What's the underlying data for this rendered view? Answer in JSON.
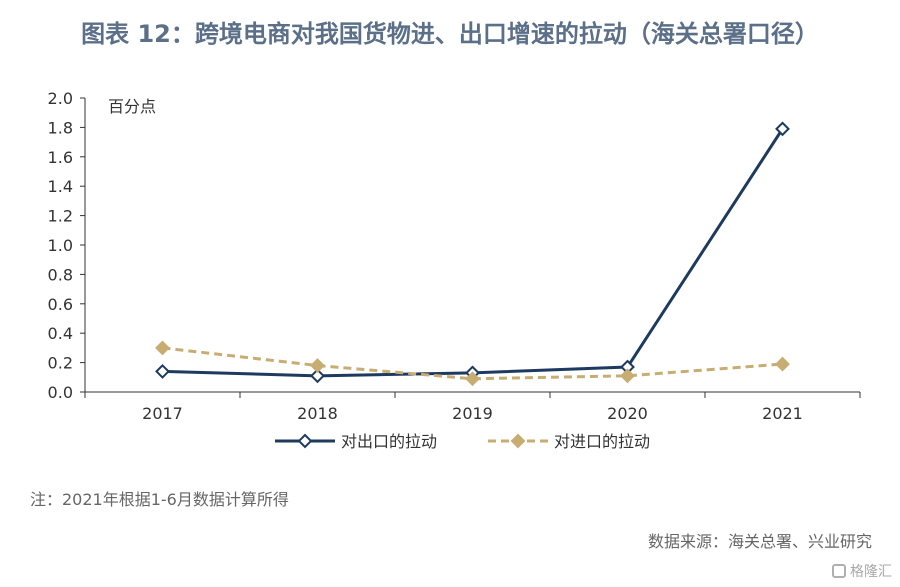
{
  "title": "图表 12：跨境电商对我国货物进、出口增速的拉动（海关总署口径）",
  "note": "注：2021年根据1-6月数据计算所得",
  "source": "数据来源：海关总署、兴业研究",
  "watermark": "格隆汇",
  "colors": {
    "export": "#1f3a5f",
    "import": "#c7ad72"
  },
  "chart_data": {
    "type": "line",
    "unit_label": "百分点",
    "categories": [
      "2017",
      "2018",
      "2019",
      "2020",
      "2021"
    ],
    "ylim": [
      0,
      2.0
    ],
    "yticks": [
      "0.0",
      "0.2",
      "0.4",
      "0.6",
      "0.8",
      "1.0",
      "1.2",
      "1.4",
      "1.6",
      "1.8",
      "2.0"
    ],
    "grid": false,
    "legend_position": "bottom",
    "series": [
      {
        "name": "对出口的拉动",
        "values": [
          0.14,
          0.11,
          0.13,
          0.17,
          1.79
        ],
        "style": "solid",
        "marker": "diamond"
      },
      {
        "name": "对进口的拉动",
        "values": [
          0.3,
          0.18,
          0.09,
          0.11,
          0.19
        ],
        "style": "dashed",
        "marker": "diamond"
      }
    ]
  }
}
